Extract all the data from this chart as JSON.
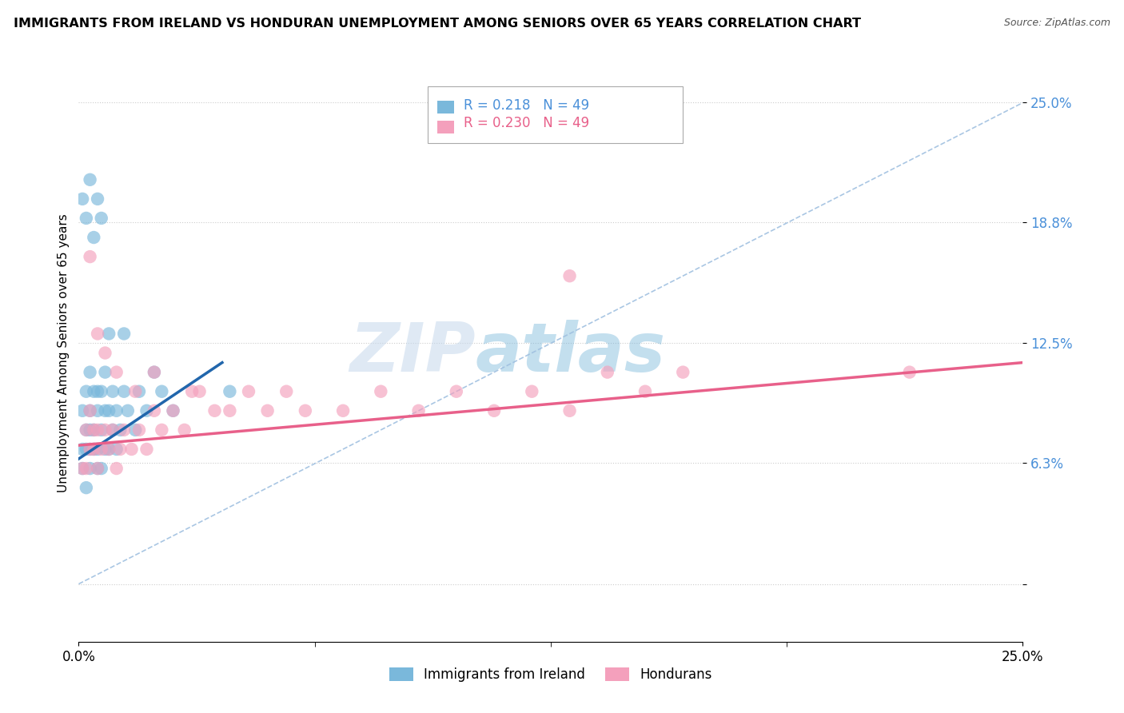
{
  "title": "IMMIGRANTS FROM IRELAND VS HONDURAN UNEMPLOYMENT AMONG SENIORS OVER 65 YEARS CORRELATION CHART",
  "source": "Source: ZipAtlas.com",
  "ylabel": "Unemployment Among Seniors over 65 years",
  "xlim": [
    0.0,
    0.25
  ],
  "ylim": [
    -0.03,
    0.27
  ],
  "ytick_vals": [
    0.0,
    0.063,
    0.125,
    0.188,
    0.25
  ],
  "ytick_labels": [
    "",
    "6.3%",
    "12.5%",
    "18.8%",
    "25.0%"
  ],
  "xtick_vals": [
    0.0,
    0.25
  ],
  "xtick_labels": [
    "0.0%",
    "25.0%"
  ],
  "r_ireland": 0.218,
  "n_ireland": 49,
  "r_honduran": 0.23,
  "n_honduran": 49,
  "color_ireland": "#7ab8db",
  "color_honduran": "#f4a0bc",
  "line_color_ireland": "#2166ac",
  "line_color_honduran": "#e8608a",
  "refline_color": "#a0c0e0",
  "watermark_zip": "ZIP",
  "watermark_atlas": "atlas",
  "ireland_x": [
    0.001,
    0.001,
    0.001,
    0.002,
    0.002,
    0.002,
    0.002,
    0.003,
    0.003,
    0.003,
    0.003,
    0.003,
    0.004,
    0.004,
    0.004,
    0.005,
    0.005,
    0.005,
    0.005,
    0.006,
    0.006,
    0.006,
    0.007,
    0.007,
    0.007,
    0.008,
    0.008,
    0.009,
    0.009,
    0.01,
    0.01,
    0.011,
    0.012,
    0.013,
    0.015,
    0.016,
    0.018,
    0.02,
    0.022,
    0.025,
    0.001,
    0.002,
    0.003,
    0.004,
    0.005,
    0.006,
    0.008,
    0.012,
    0.04
  ],
  "ireland_y": [
    0.06,
    0.07,
    0.09,
    0.05,
    0.07,
    0.08,
    0.1,
    0.06,
    0.07,
    0.08,
    0.09,
    0.11,
    0.07,
    0.08,
    0.1,
    0.06,
    0.07,
    0.09,
    0.1,
    0.06,
    0.08,
    0.1,
    0.07,
    0.09,
    0.11,
    0.07,
    0.09,
    0.08,
    0.1,
    0.07,
    0.09,
    0.08,
    0.1,
    0.09,
    0.08,
    0.1,
    0.09,
    0.11,
    0.1,
    0.09,
    0.2,
    0.19,
    0.21,
    0.18,
    0.2,
    0.19,
    0.13,
    0.13,
    0.1
  ],
  "honduran_x": [
    0.001,
    0.002,
    0.002,
    0.003,
    0.003,
    0.004,
    0.004,
    0.005,
    0.005,
    0.006,
    0.007,
    0.008,
    0.009,
    0.01,
    0.011,
    0.012,
    0.014,
    0.016,
    0.018,
    0.02,
    0.022,
    0.025,
    0.028,
    0.032,
    0.036,
    0.04,
    0.045,
    0.05,
    0.055,
    0.06,
    0.07,
    0.08,
    0.09,
    0.1,
    0.11,
    0.12,
    0.13,
    0.14,
    0.15,
    0.16,
    0.003,
    0.005,
    0.007,
    0.01,
    0.015,
    0.02,
    0.03,
    0.13,
    0.22
  ],
  "honduran_y": [
    0.06,
    0.06,
    0.08,
    0.07,
    0.09,
    0.07,
    0.08,
    0.06,
    0.08,
    0.07,
    0.08,
    0.07,
    0.08,
    0.06,
    0.07,
    0.08,
    0.07,
    0.08,
    0.07,
    0.09,
    0.08,
    0.09,
    0.08,
    0.1,
    0.09,
    0.09,
    0.1,
    0.09,
    0.1,
    0.09,
    0.09,
    0.1,
    0.09,
    0.1,
    0.09,
    0.1,
    0.09,
    0.11,
    0.1,
    0.11,
    0.17,
    0.13,
    0.12,
    0.11,
    0.1,
    0.11,
    0.1,
    0.16,
    0.11
  ],
  "ireland_trendline_x": [
    0.0,
    0.038
  ],
  "ireland_trendline_y": [
    0.065,
    0.115
  ],
  "honduran_trendline_x": [
    0.0,
    0.25
  ],
  "honduran_trendline_y": [
    0.072,
    0.115
  ]
}
